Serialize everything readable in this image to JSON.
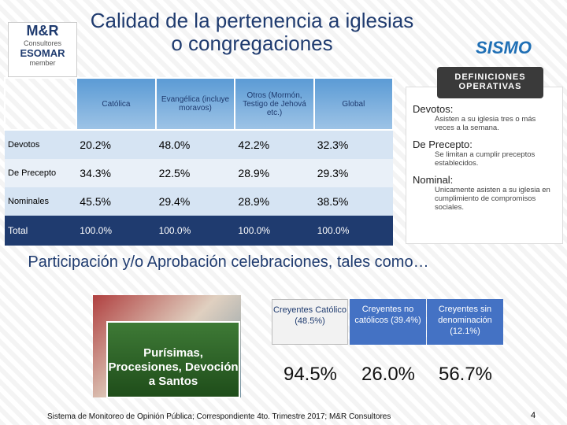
{
  "header": {
    "title": "Calidad de la pertenencia a iglesias o congregaciones",
    "logo_left": [
      "M&R",
      "Consultores",
      "ESOMAR",
      "member"
    ],
    "logo_right": "SISMO"
  },
  "table": {
    "columns": [
      "Católica",
      "Evangélica (incluye moravos)",
      "Otros (Mormón, Testigo de Jehová etc.)",
      "Global"
    ],
    "rows": [
      {
        "label": "Devotos",
        "cells": [
          "20.2%",
          "48.0%",
          "42.2%",
          "32.3%"
        ]
      },
      {
        "label": "De Precepto",
        "cells": [
          "34.3%",
          "22.5%",
          "28.9%",
          "29.3%"
        ]
      },
      {
        "label": "Nominales",
        "cells": [
          "45.5%",
          "29.4%",
          "28.9%",
          "38.5%"
        ]
      },
      {
        "label": "Total",
        "cells": [
          "100.0%",
          "100.0%",
          "100.0%",
          "100.0%"
        ]
      }
    ]
  },
  "definitions": {
    "title": "DEFINICIONES OPERATIVAS",
    "items": [
      {
        "term": "Devotos:",
        "text": "Asisten a su iglesia tres o más veces a la semana."
      },
      {
        "term": "De Precepto:",
        "text": "Se limitan a cumplir preceptos establecidos."
      },
      {
        "term": "Nominal:",
        "text": "Unicamente asisten a su iglesia en cumplimiento de compromisos sociales."
      }
    ]
  },
  "participation": {
    "heading": "Participación y/o Aprobación celebraciones, tales como…",
    "caption": "Purísimas, Procesiones, Devoción a Santos",
    "groups": [
      {
        "label": "Creyentes Católico (48.5%)",
        "value": "94.5%"
      },
      {
        "label": "Creyentes no católicos (39.4%)",
        "value": "26.0%"
      },
      {
        "label": "Creyentes sin denominación (12.1%)",
        "value": "56.7%"
      }
    ]
  },
  "footer": {
    "text": "Sistema de Monitoreo de Opinión Pública; Correspondiente 4to. Trimestre 2017; M&R Consultores",
    "page": "4"
  }
}
